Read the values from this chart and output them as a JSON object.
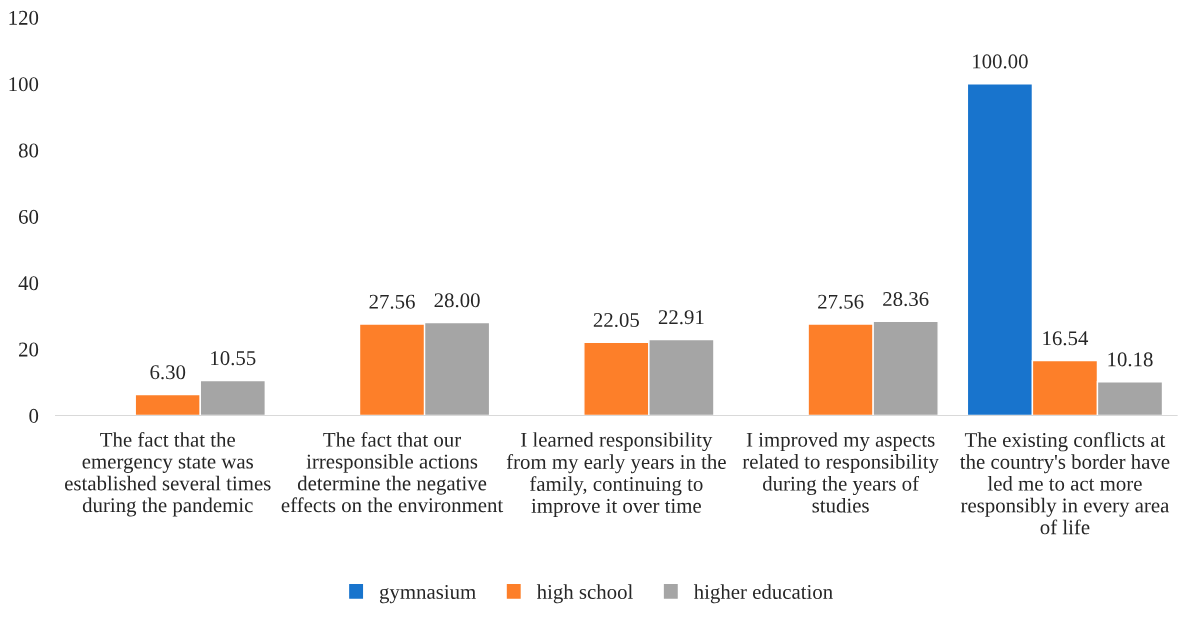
{
  "chart_data": {
    "type": "bar",
    "categories": [
      "The fact that the emergency state was established several times during the pandemic",
      "The fact that our irresponsible actions determine the negative effects on the environment",
      "I learned responsibility from my early years in the family, continuing to improve it over time",
      "I improved my aspects related to responsibility during the years of studies",
      "The existing conflicts at the country's border have led me to act more responsibly in every area of life"
    ],
    "series": [
      {
        "name": "gymnasium",
        "color": "#1874cd",
        "values": [
          null,
          null,
          null,
          null,
          100.0
        ],
        "value_labels": [
          null,
          null,
          null,
          null,
          "100.00"
        ]
      },
      {
        "name": "high school",
        "color": "#fd7f29",
        "values": [
          6.3,
          27.56,
          22.05,
          27.56,
          16.54
        ],
        "value_labels": [
          "6.30",
          "27.56",
          "22.05",
          "27.56",
          "16.54"
        ]
      },
      {
        "name": "higher education",
        "color": "#a5a5a5",
        "values": [
          10.55,
          28.0,
          22.91,
          28.36,
          10.18
        ],
        "value_labels": [
          "10.55",
          "28.00",
          "22.91",
          "28.36",
          "10.18"
        ]
      }
    ],
    "ylim": [
      0,
      120
    ],
    "yticks": [
      0,
      20,
      40,
      60,
      80,
      100,
      120
    ],
    "grid": false,
    "legend": "bottom"
  }
}
